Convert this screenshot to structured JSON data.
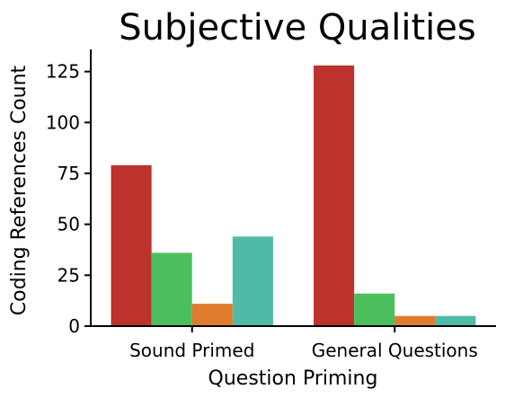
{
  "chart_data": {
    "type": "bar",
    "title": "Subjective Qualities",
    "xlabel": "Question Priming",
    "ylabel": "Coding References Count",
    "categories": [
      "Sound Primed",
      "General Questions"
    ],
    "series": [
      {
        "color": "#bd322d",
        "values": [
          79,
          128
        ]
      },
      {
        "color": "#4bbf5e",
        "values": [
          36,
          16
        ]
      },
      {
        "color": "#e07c2d",
        "values": [
          11,
          5
        ]
      },
      {
        "color": "#4fbba6",
        "values": [
          44,
          5
        ]
      }
    ],
    "ylim": [
      0,
      135
    ],
    "yticks": [
      0,
      25,
      50,
      75,
      100,
      125
    ],
    "grid": false,
    "legend": "none"
  }
}
